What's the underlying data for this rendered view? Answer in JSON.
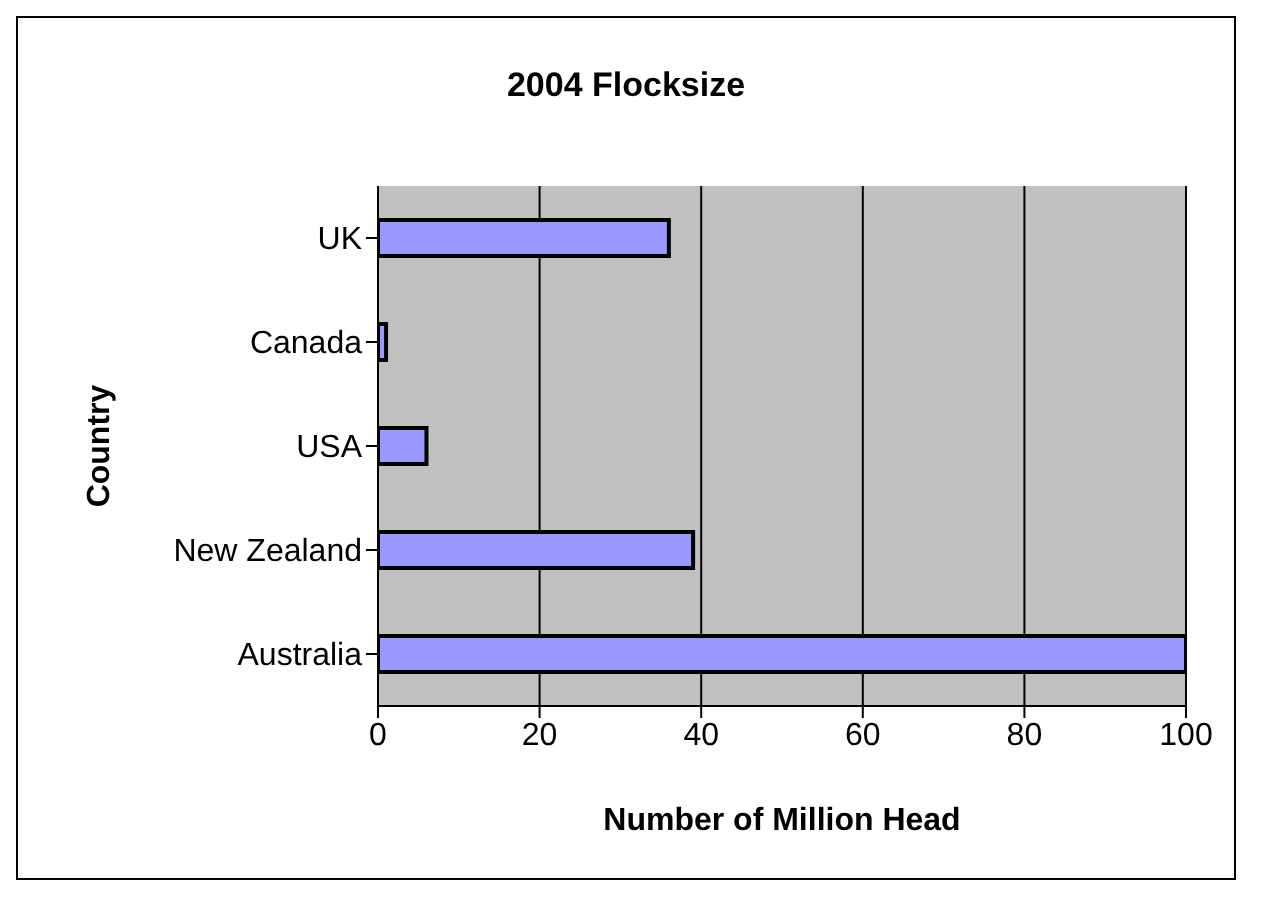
{
  "chart_data": {
    "type": "bar",
    "orientation": "horizontal",
    "title": "2004 Flocksize",
    "xlabel": "Number of Million Head",
    "ylabel": "Country",
    "categories": [
      "UK",
      "Canada",
      "USA",
      "New Zealand",
      "Australia"
    ],
    "values": [
      36,
      1,
      6,
      39,
      100
    ],
    "color": "#9999ff",
    "xlim": [
      0,
      100
    ],
    "xticks": [
      0,
      20,
      40,
      60,
      80,
      100
    ],
    "grid": "x"
  }
}
